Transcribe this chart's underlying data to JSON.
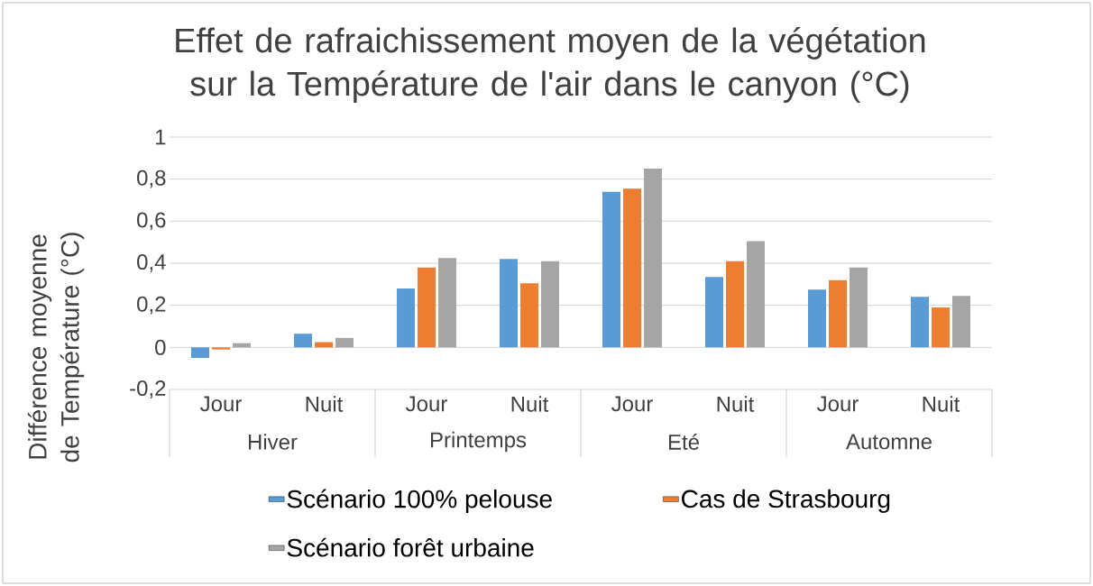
{
  "chart_data": {
    "type": "bar",
    "title": "Effet de rafraichissement moyen de la végétation sur la Température de l'air dans le canyon (°C)",
    "ylabel": "Différence moyenne de Température  (°C)",
    "categories": [
      "Jour",
      "Nuit",
      "Jour",
      "Nuit",
      "Jour",
      "Nuit",
      "Jour",
      "Nuit"
    ],
    "annotations": [
      "Hiver",
      "Printemps",
      "Eté",
      "Automne"
    ],
    "series": [
      {
        "name": "Scénario 100% pelouse",
        "color": "#5b9bd5",
        "values": [
          -0.05,
          0.065,
          0.28,
          0.42,
          0.74,
          0.335,
          0.275,
          0.24
        ]
      },
      {
        "name": "Cas de Strasbourg",
        "color": "#ed7d31",
        "values": [
          -0.01,
          0.025,
          0.38,
          0.305,
          0.755,
          0.41,
          0.32,
          0.19
        ]
      },
      {
        "name": "Scénario forêt urbaine",
        "color": "#a5a5a5",
        "values": [
          0.02,
          0.045,
          0.425,
          0.41,
          0.85,
          0.505,
          0.38,
          0.245
        ]
      }
    ],
    "ylim": [
      -0.2,
      1
    ],
    "yticks": [
      {
        "value": -0.2,
        "label": "-0,2"
      },
      0,
      {
        "value": 0.2,
        "label": "0,2"
      },
      {
        "value": 0.4,
        "label": "0,4"
      },
      {
        "value": 0.6,
        "label": "0,6"
      },
      {
        "value": 0.8,
        "label": "0,8"
      },
      1
    ],
    "grid": "y",
    "legend": "bottom"
  }
}
